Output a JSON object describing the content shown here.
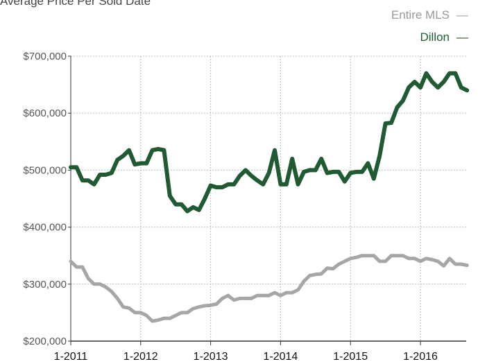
{
  "header": {
    "title": "Average Price Per Sold Date"
  },
  "chart_data": {
    "type": "line",
    "title": "Average Price Per Sold Date",
    "xlabel": "",
    "ylabel": "",
    "x_ticks": [
      "1-2011",
      "1-2012",
      "1-2013",
      "1-2014",
      "1-2015",
      "1-2016"
    ],
    "y_ticks": [
      "$200,000",
      "$300,000",
      "$400,000",
      "$500,000",
      "$600,000",
      "$700,000"
    ],
    "ylim": [
      200000,
      700000
    ],
    "x_start": "2011-01",
    "x_end": "2016-09",
    "grid": true,
    "legend": "top-right",
    "series": [
      {
        "name": "Entire MLS",
        "color": "#a6a6a6",
        "values": [
          340000,
          330000,
          330000,
          310000,
          300000,
          300000,
          295000,
          287000,
          275000,
          260000,
          258000,
          250000,
          250000,
          245000,
          235000,
          237000,
          240000,
          240000,
          245000,
          250000,
          250000,
          257000,
          260000,
          262000,
          263000,
          265000,
          275000,
          280000,
          272000,
          275000,
          275000,
          275000,
          280000,
          280000,
          280000,
          285000,
          280000,
          285000,
          285000,
          290000,
          305000,
          315000,
          317000,
          318000,
          328000,
          327000,
          335000,
          340000,
          345000,
          347000,
          350000,
          350000,
          350000,
          340000,
          340000,
          350000,
          350000,
          350000,
          345000,
          345000,
          340000,
          345000,
          343000,
          340000,
          332000,
          345000,
          335000,
          335000,
          333000
        ]
      },
      {
        "name": "Dillon",
        "color": "#1f5a33",
        "values": [
          505000,
          505000,
          482000,
          482000,
          475000,
          492000,
          492000,
          495000,
          518000,
          525000,
          535000,
          510000,
          512000,
          512000,
          535000,
          537000,
          535000,
          455000,
          440000,
          440000,
          428000,
          435000,
          430000,
          450000,
          473000,
          470000,
          470000,
          475000,
          475000,
          490000,
          500000,
          490000,
          482000,
          475000,
          495000,
          535000,
          475000,
          475000,
          520000,
          475000,
          497000,
          500000,
          500000,
          520000,
          495000,
          497000,
          497000,
          480000,
          495000,
          497000,
          497000,
          512000,
          485000,
          525000,
          582000,
          583000,
          610000,
          622000,
          645000,
          655000,
          645000,
          670000,
          655000,
          645000,
          655000,
          670000,
          670000,
          645000,
          640000
        ]
      }
    ]
  }
}
